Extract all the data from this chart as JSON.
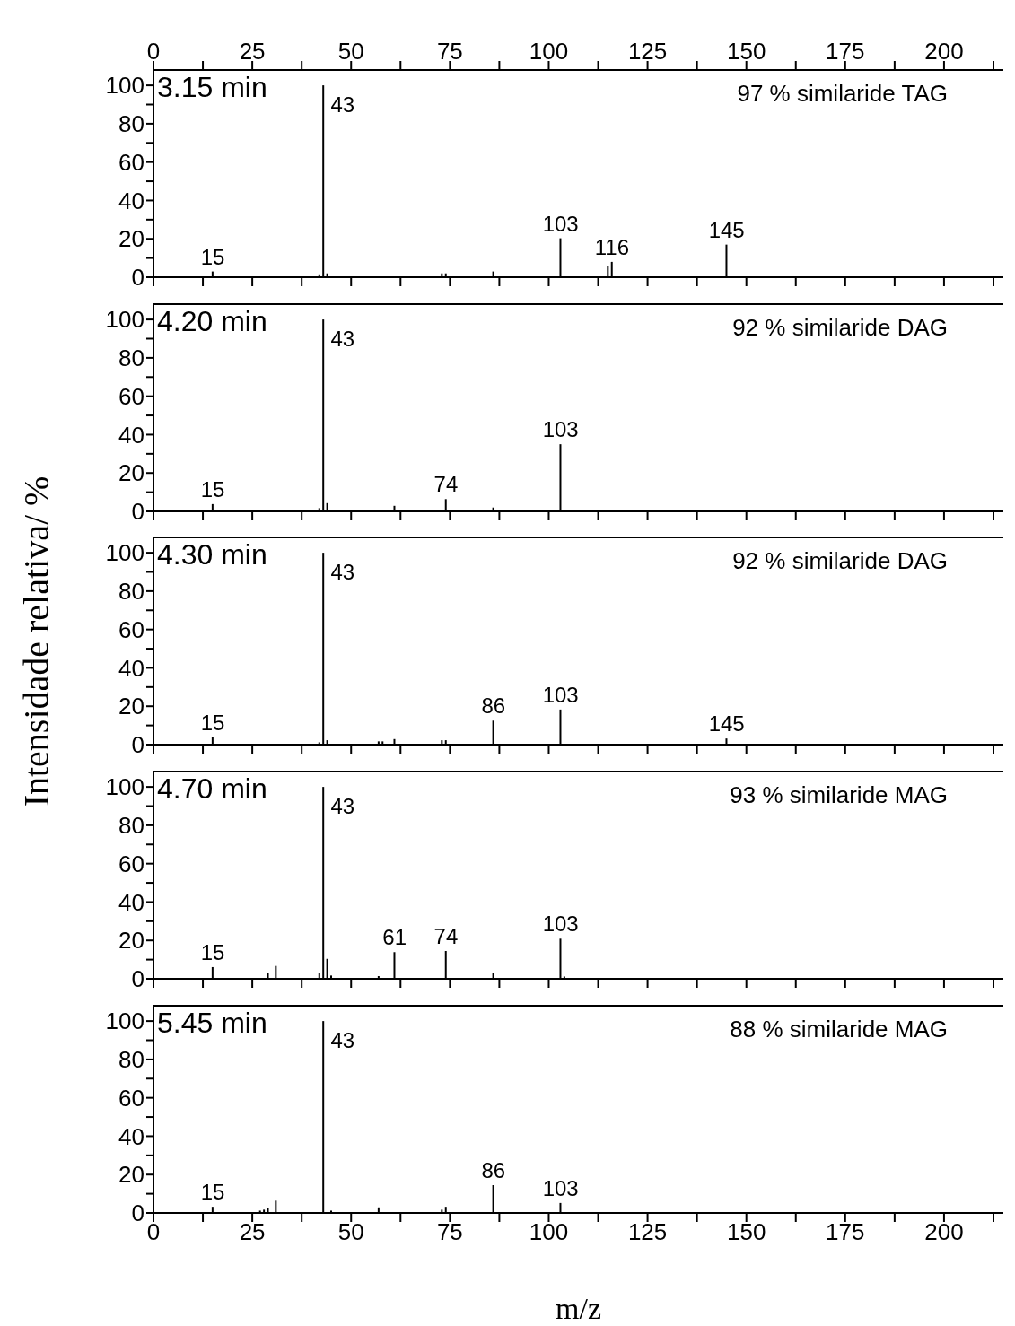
{
  "chart_data": [
    {
      "type": "bar",
      "x": [
        15,
        42,
        43,
        44,
        73,
        74,
        86,
        103,
        115,
        116,
        145
      ],
      "values": [
        3,
        1.5,
        100,
        2,
        2,
        2,
        3,
        20.3,
        5.8,
        8,
        17
      ],
      "color": "#000000",
      "xlim": [
        0,
        215
      ],
      "ylim": [
        0,
        108
      ],
      "x2lim": [
        0,
        215
      ],
      "x2ticks": [
        0,
        {
          "value": 12.5,
          "label": null
        },
        25,
        {
          "value": 37.5,
          "label": null
        },
        50,
        {
          "value": 62.5,
          "label": null
        },
        75,
        {
          "value": 87.5,
          "label": null
        },
        100,
        {
          "value": 112.5,
          "label": null
        },
        125,
        {
          "value": 137.5,
          "label": null
        },
        150,
        {
          "value": 162.5,
          "label": null
        },
        175,
        {
          "value": 187.5,
          "label": null
        },
        200,
        {
          "value": 212.5,
          "label": null
        }
      ],
      "xticks": [
        0,
        {
          "value": 12.5,
          "label": null
        },
        25,
        {
          "value": 37.5,
          "label": null
        },
        50,
        {
          "value": 62.5,
          "label": null
        },
        75,
        {
          "value": 87.5,
          "label": null
        },
        100,
        {
          "value": 112.5,
          "label": null
        },
        125,
        {
          "value": 137.5,
          "label": null
        },
        150,
        {
          "value": 162.5,
          "label": null
        },
        175,
        {
          "value": 187.5,
          "label": null
        },
        200,
        {
          "value": 212.5,
          "label": null
        }
      ],
      "yticks": [
        0,
        {
          "value": 10,
          "label": null
        },
        20,
        {
          "value": 30,
          "label": null
        },
        40,
        {
          "value": 50,
          "label": null
        },
        60,
        {
          "value": 70,
          "label": null
        },
        80,
        {
          "value": 90,
          "label": null
        },
        100
      ],
      "tick_labels": "y",
      "annotations": [
        "3.15 min",
        "97 % similaride TAG",
        {
          "text": "15",
          "x": 15,
          "y": 3
        },
        {
          "text": "43",
          "x": 43,
          "y": 100
        },
        {
          "text": "103",
          "x": 103,
          "y": 20.3
        },
        {
          "text": "116",
          "x": 116,
          "y": 8
        },
        {
          "text": "145",
          "x": 145,
          "y": 17
        }
      ]
    },
    {
      "type": "bar",
      "x": [
        15,
        42,
        43,
        44,
        61,
        74,
        86,
        103
      ],
      "values": [
        3.8,
        1.7,
        100,
        4.3,
        2.9,
        6.4,
        2,
        35
      ],
      "color": "#000000",
      "xlim": [
        0,
        215
      ],
      "ylim": [
        0,
        108
      ],
      "xticks": [
        0,
        {
          "value": 12.5,
          "label": null
        },
        25,
        {
          "value": 37.5,
          "label": null
        },
        50,
        {
          "value": 62.5,
          "label": null
        },
        75,
        {
          "value": 87.5,
          "label": null
        },
        100,
        {
          "value": 112.5,
          "label": null
        },
        125,
        {
          "value": 137.5,
          "label": null
        },
        150,
        {
          "value": 162.5,
          "label": null
        },
        175,
        {
          "value": 187.5,
          "label": null
        },
        200,
        {
          "value": 212.5,
          "label": null
        }
      ],
      "yticks": [
        0,
        {
          "value": 10,
          "label": null
        },
        20,
        {
          "value": 30,
          "label": null
        },
        40,
        {
          "value": 50,
          "label": null
        },
        60,
        {
          "value": 70,
          "label": null
        },
        80,
        {
          "value": 90,
          "label": null
        },
        100
      ],
      "tick_labels": "y",
      "annotations": [
        "4.20 min",
        "92 % similaride DAG",
        {
          "text": "15",
          "x": 15,
          "y": 3.8
        },
        {
          "text": "43",
          "x": 43,
          "y": 100
        },
        {
          "text": "74",
          "x": 74,
          "y": 6.4
        },
        {
          "text": "103",
          "x": 103,
          "y": 35
        }
      ]
    },
    {
      "type": "bar",
      "x": [
        15,
        42,
        43,
        44,
        57,
        58,
        61,
        73,
        74,
        86,
        103,
        145
      ],
      "values": [
        3.8,
        1.2,
        100,
        2.3,
        1.7,
        1.7,
        2.9,
        2.3,
        2.3,
        12.5,
        18.3,
        3.2
      ],
      "color": "#000000",
      "xlim": [
        0,
        215
      ],
      "ylim": [
        0,
        108
      ],
      "xticks": [
        0,
        {
          "value": 12.5,
          "label": null
        },
        25,
        {
          "value": 37.5,
          "label": null
        },
        50,
        {
          "value": 62.5,
          "label": null
        },
        75,
        {
          "value": 87.5,
          "label": null
        },
        100,
        {
          "value": 112.5,
          "label": null
        },
        125,
        {
          "value": 137.5,
          "label": null
        },
        150,
        {
          "value": 162.5,
          "label": null
        },
        175,
        {
          "value": 187.5,
          "label": null
        },
        200,
        {
          "value": 212.5,
          "label": null
        }
      ],
      "yticks": [
        0,
        {
          "value": 10,
          "label": null
        },
        20,
        {
          "value": 30,
          "label": null
        },
        40,
        {
          "value": 50,
          "label": null
        },
        60,
        {
          "value": 70,
          "label": null
        },
        80,
        {
          "value": 90,
          "label": null
        },
        100
      ],
      "tick_labels": "y",
      "ylabel": "Intensidade relativa/ %",
      "annotations": [
        "4.30 min",
        "92 % similaride DAG",
        {
          "text": "15",
          "x": 15,
          "y": 3.8
        },
        {
          "text": "43",
          "x": 43,
          "y": 100
        },
        {
          "text": "86",
          "x": 86,
          "y": 12.5
        },
        {
          "text": "103",
          "x": 103,
          "y": 18.3
        },
        {
          "text": "145",
          "x": 145,
          "y": 3.2
        }
      ]
    },
    {
      "type": "bar",
      "x": [
        15,
        29,
        31,
        42,
        43,
        44,
        45,
        57,
        61,
        74,
        86,
        103,
        104
      ],
      "values": [
        6.1,
        3.2,
        6.7,
        2.9,
        100,
        10.4,
        1.7,
        1.4,
        13.9,
        14.5,
        2.9,
        20.9,
        1.2
      ],
      "color": "#000000",
      "xlim": [
        0,
        215
      ],
      "ylim": [
        0,
        108
      ],
      "xticks": [
        0,
        {
          "value": 12.5,
          "label": null
        },
        25,
        {
          "value": 37.5,
          "label": null
        },
        50,
        {
          "value": 62.5,
          "label": null
        },
        75,
        {
          "value": 87.5,
          "label": null
        },
        100,
        {
          "value": 112.5,
          "label": null
        },
        125,
        {
          "value": 137.5,
          "label": null
        },
        150,
        {
          "value": 162.5,
          "label": null
        },
        175,
        {
          "value": 187.5,
          "label": null
        },
        200,
        {
          "value": 212.5,
          "label": null
        }
      ],
      "yticks": [
        0,
        {
          "value": 10,
          "label": null
        },
        20,
        {
          "value": 30,
          "label": null
        },
        40,
        {
          "value": 50,
          "label": null
        },
        60,
        {
          "value": 70,
          "label": null
        },
        80,
        {
          "value": 90,
          "label": null
        },
        100
      ],
      "tick_labels": "y",
      "annotations": [
        "4.70 min",
        "93 % similaride MAG",
        {
          "text": "15",
          "x": 15,
          "y": 6.1
        },
        {
          "text": "43",
          "x": 43,
          "y": 100
        },
        {
          "text": "61",
          "x": 61,
          "y": 13.9
        },
        {
          "text": "74",
          "x": 74,
          "y": 14.5
        },
        {
          "text": "103",
          "x": 103,
          "y": 20.9
        }
      ]
    },
    {
      "type": "bar",
      "x": [
        15,
        27,
        28,
        29,
        31,
        43,
        45,
        57,
        73,
        74,
        86,
        103
      ],
      "values": [
        3.2,
        1.2,
        1.7,
        2.6,
        6.4,
        100,
        1.2,
        2.9,
        1.7,
        3.2,
        14.5,
        5.2
      ],
      "color": "#000000",
      "xlim": [
        0,
        215
      ],
      "ylim": [
        0,
        108
      ],
      "xticks": [
        0,
        {
          "value": 12.5,
          "label": null
        },
        25,
        {
          "value": 37.5,
          "label": null
        },
        50,
        {
          "value": 62.5,
          "label": null
        },
        75,
        {
          "value": 87.5,
          "label": null
        },
        100,
        {
          "value": 112.5,
          "label": null
        },
        125,
        {
          "value": 137.5,
          "label": null
        },
        150,
        {
          "value": 162.5,
          "label": null
        },
        175,
        {
          "value": 187.5,
          "label": null
        },
        200,
        {
          "value": 212.5,
          "label": null
        }
      ],
      "yticks": [
        0,
        {
          "value": 10,
          "label": null
        },
        20,
        {
          "value": 30,
          "label": null
        },
        40,
        {
          "value": 50,
          "label": null
        },
        60,
        {
          "value": 70,
          "label": null
        },
        80,
        {
          "value": 90,
          "label": null
        },
        100
      ],
      "xlabel": "m/z",
      "annotations": [
        "5.45 min",
        "88 % similaride MAG",
        {
          "text": "15",
          "x": 15,
          "y": 3.2
        },
        {
          "text": "43",
          "x": 43,
          "y": 100
        },
        {
          "text": "86",
          "x": 86,
          "y": 14.5
        },
        {
          "text": "103",
          "x": 103,
          "y": 5.2
        }
      ]
    }
  ]
}
